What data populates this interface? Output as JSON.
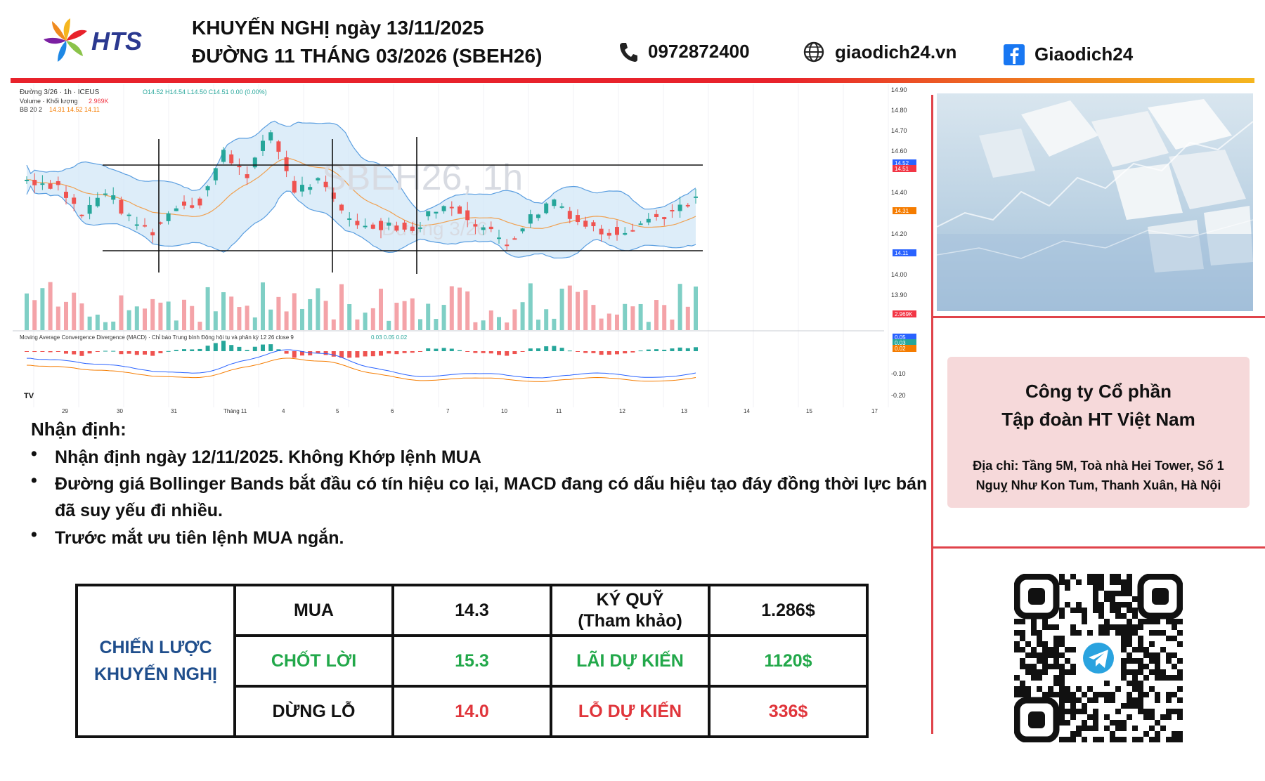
{
  "header": {
    "logo_text": "HTS",
    "title_line1": "KHUYẾN NGHỊ ngày 13/11/2025",
    "title_line2": "ĐƯỜNG 11 THÁNG 03/2026 (SBEH26)",
    "phone": "0972872400",
    "website": "giaodich24.vn",
    "facebook": "Giaodich24",
    "icons": [
      "phone-icon",
      "globe-icon",
      "facebook-icon"
    ],
    "bar_colors": [
      "#e8222b",
      "#f08a1e",
      "#f5b61f"
    ]
  },
  "chart": {
    "legend_line1": "Đường 3/26 · 1h · ICEUS",
    "ohlc": "O14.52 H14.54 L14.50 C14.51 0.00 (0.00%)",
    "volume_label": "Volume · Khối lượng",
    "volume_value": "2.969K",
    "bb_label": "BB 20 2",
    "bb_values": "14.31  14.52  14.11",
    "watermark_1": "SBEH26, 1h",
    "watermark_2": "Đường 3/26",
    "macd_label": "Moving Average Convergence Divergence (MACD) · Chỉ báo Trung bình Động hội tụ và phân kỳ 12 26 close 9",
    "macd_values": "0.03  0.05  0.02",
    "tv_logo": "TV",
    "price_ticks": [
      "14.90",
      "14.80",
      "14.70",
      "14.60",
      "14.40",
      "14.20",
      "14.00",
      "13.90"
    ],
    "macd_ticks": [
      "-0.10",
      "-0.20"
    ],
    "price_labels": [
      {
        "text": "14.52",
        "color": "#2962ff"
      },
      {
        "text": "14.51",
        "color": "#f23645"
      },
      {
        "text": "14.31",
        "color": "#f57c00"
      },
      {
        "text": "14.11",
        "color": "#2962ff"
      },
      {
        "text": "2.969K",
        "color": "#f23645"
      },
      {
        "text": "0.05",
        "color": "#2962ff"
      },
      {
        "text": "0.03",
        "color": "#26a69a"
      },
      {
        "text": "0.02",
        "color": "#f57c00"
      }
    ],
    "date_ticks": [
      "29",
      "30",
      "31",
      "Tháng 11",
      "4",
      "5",
      "6",
      "7",
      "10",
      "11",
      "12",
      "13",
      "14",
      "15",
      "17"
    ],
    "series_colors": {
      "up": "#26a69a",
      "down": "#ef5350",
      "band": "#5a9ee0",
      "basis": "#f0a050"
    }
  },
  "analysis": {
    "heading": "Nhận định:",
    "bullets": [
      "Nhận định ngày 12/11/2025. Không Khớp lệnh MUA",
      "Đường giá Bollinger Bands bắt đầu có tín hiệu co lại, MACD đang có dấu hiệu tạo đáy đồng thời lực bán đã suy yếu đi nhiều.",
      "Trước mắt ưu tiên lệnh MUA ngắn."
    ]
  },
  "strategy": {
    "label_line1": "CHIẾN LƯỢC",
    "label_line2": "KHUYẾN NGHỊ",
    "rows": [
      {
        "action": "MUA",
        "price": "14.3",
        "metric_line1": "KÝ QUỸ",
        "metric_line2": "(Tham khảo)",
        "amount": "1.286$",
        "color": "#111111"
      },
      {
        "action": "CHỐT LỜI",
        "price": "15.3",
        "metric_line1": "LÃI DỰ KIẾN",
        "metric_line2": "",
        "amount": "1120$",
        "color": "#22a84a"
      },
      {
        "action": "DỪNG LỖ",
        "price": "14.0",
        "metric_line1": "LỖ DỰ KIẾN",
        "metric_line2": "",
        "amount": "336$",
        "color": "#e0353b"
      }
    ]
  },
  "company": {
    "name_line1": "Công ty Cổ phần",
    "name_line2": "Tập đoàn HT Việt Nam",
    "address_line1": "Địa chỉ: Tầng 5M, Toà nhà Hei Tower, Số 1",
    "address_line2": "Nguỵ Như Kon Tum, Thanh Xuân, Hà Nội",
    "qr_icon": "telegram-icon"
  }
}
